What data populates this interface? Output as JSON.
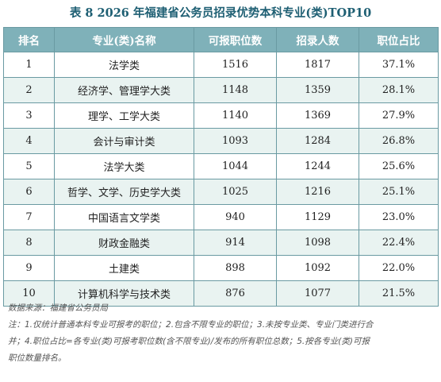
{
  "title": "表 8  2026 年福建省公务员招录优势本科专业(类)TOP10",
  "headers": {
    "rank": "排名",
    "major": "专业(类)名称",
    "positions": "可报职位数",
    "recruits": "招录人数",
    "share": "职位占比"
  },
  "rows": [
    {
      "rank": "1",
      "major": "法学类",
      "positions": "1516",
      "recruits": "1817",
      "share": "37.1%"
    },
    {
      "rank": "2",
      "major": "经济学、管理学大类",
      "positions": "1148",
      "recruits": "1359",
      "share": "28.1%"
    },
    {
      "rank": "3",
      "major": "理学、工学大类",
      "positions": "1140",
      "recruits": "1369",
      "share": "27.9%"
    },
    {
      "rank": "4",
      "major": "会计与审计类",
      "positions": "1093",
      "recruits": "1284",
      "share": "26.8%"
    },
    {
      "rank": "5",
      "major": "法学大类",
      "positions": "1044",
      "recruits": "1244",
      "share": "25.6%"
    },
    {
      "rank": "6",
      "major": "哲学、文学、历史学大类",
      "positions": "1025",
      "recruits": "1216",
      "share": "25.1%"
    },
    {
      "rank": "7",
      "major": "中国语言文学类",
      "positions": "940",
      "recruits": "1129",
      "share": "23.0%"
    },
    {
      "rank": "8",
      "major": "财政金融类",
      "positions": "914",
      "recruits": "1098",
      "share": "22.4%"
    },
    {
      "rank": "9",
      "major": "土建类",
      "positions": "898",
      "recruits": "1092",
      "share": "22.0%"
    },
    {
      "rank": "10",
      "major": "计算机科学与技术类",
      "positions": "876",
      "recruits": "1077",
      "share": "21.5%"
    }
  ],
  "source": "数据来源：福建省公务员局",
  "note_line1": "注：1.仅统计普通本科专业可报考的职位；2.包含不限专业的职位；3.未按专业类、专业门类进行合",
  "note_line2": "并；4.职位占比=各专业(类)可报考职位数(含不限专业)/发布的所有职位总数；5.按各专业(类)可报",
  "note_line3": "职位数量排名。"
}
